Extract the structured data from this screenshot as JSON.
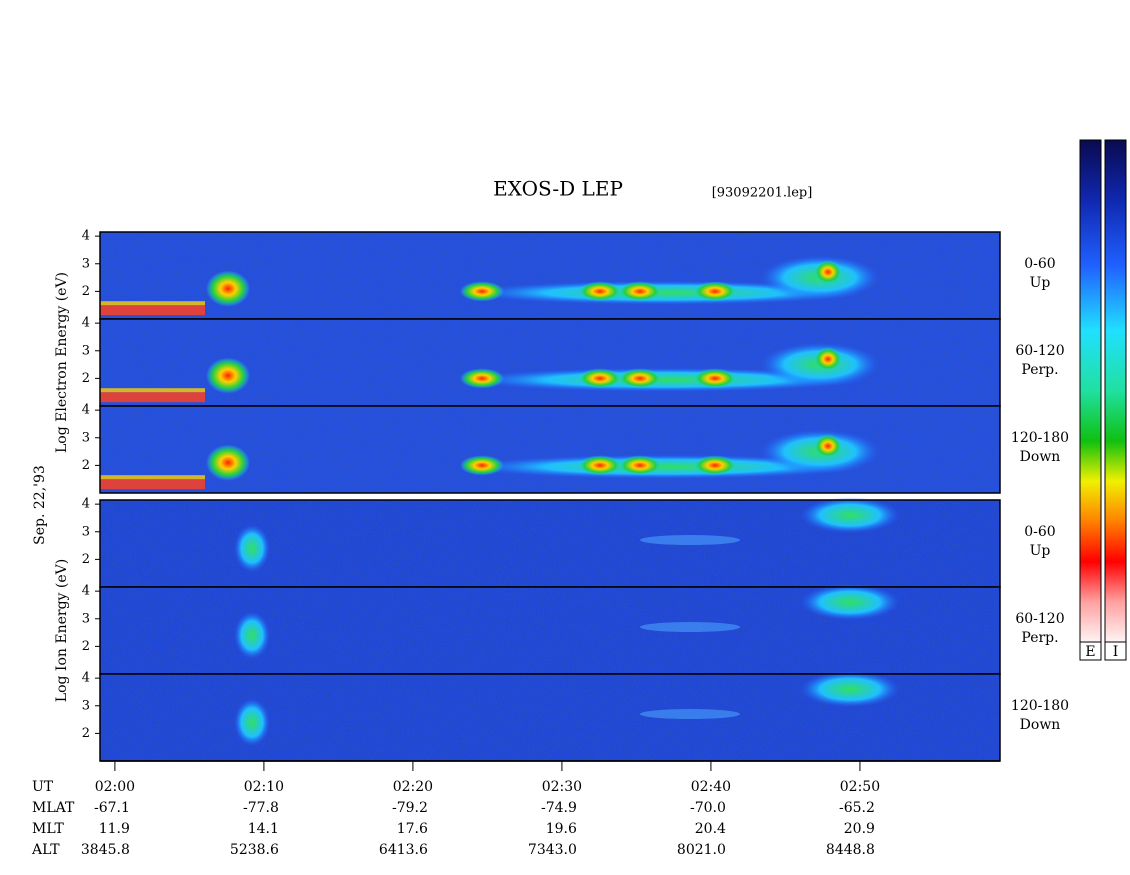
{
  "chart_data": {
    "type": "spectrogram",
    "title": "EXOS-D LEP",
    "file_label": "[93092201.lep]",
    "date_label": "Sep. 22,'93",
    "groups": [
      {
        "ylabel": "Log Electron Energy (eV)",
        "panels": [
          {
            "label": "0-60",
            "sublabel": "Up"
          },
          {
            "label": "60-120",
            "sublabel": "Perp."
          },
          {
            "label": "120-180",
            "sublabel": "Down"
          }
        ]
      },
      {
        "ylabel": "Log Ion Energy (eV)",
        "panels": [
          {
            "label": "0-60",
            "sublabel": "Up"
          },
          {
            "label": "60-120",
            "sublabel": "Perp."
          },
          {
            "label": "120-180",
            "sublabel": "Down"
          }
        ]
      }
    ],
    "ylim": [
      1,
      4.15
    ],
    "yticks": [
      2,
      3,
      4
    ],
    "xlim": [
      119,
      179.4
    ],
    "xticks": [
      {
        "value": 120,
        "label": "02:00"
      },
      {
        "value": 130,
        "label": "02:10"
      },
      {
        "value": 140,
        "label": "02:20"
      },
      {
        "value": 150,
        "label": "02:30"
      },
      {
        "value": 160,
        "label": "02:40"
      },
      {
        "value": 170,
        "label": "02:50"
      }
    ],
    "xaxis_label": "UT",
    "orbit_rows": [
      {
        "name": "MLAT",
        "values": [
          "-67.1",
          "-77.8",
          "-79.2",
          "-74.9",
          "-70.0",
          "-65.2"
        ]
      },
      {
        "name": "MLT",
        "values": [
          "11.9",
          "14.1",
          "17.6",
          "19.6",
          "20.4",
          "20.9"
        ]
      },
      {
        "name": "ALT",
        "values": [
          "3845.8",
          "5238.6",
          "6413.6",
          "7343.0",
          "8021.0",
          "8448.8"
        ]
      }
    ],
    "colorbar_labels": [
      "E",
      "I"
    ]
  }
}
